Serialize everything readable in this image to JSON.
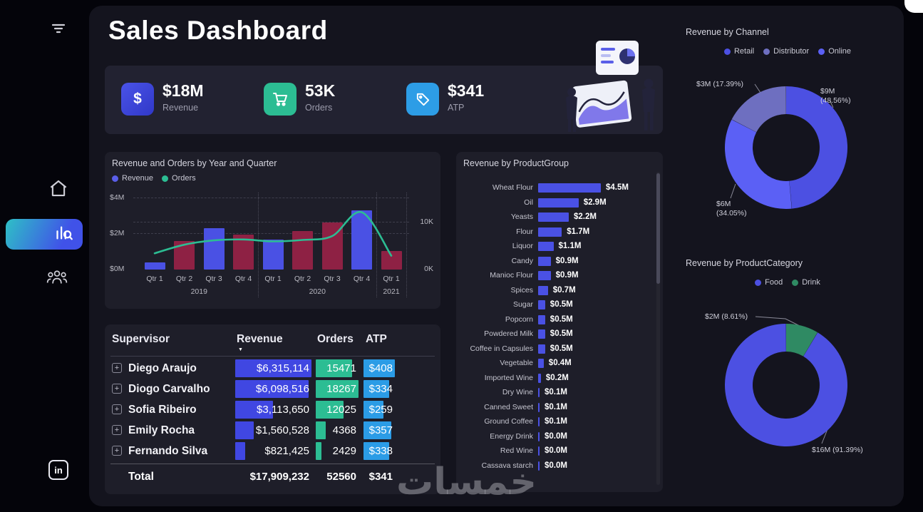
{
  "app_title": "Sales Dashboard",
  "watermark": "خمسات",
  "kpis": [
    {
      "value": "$18M",
      "label": "Revenue"
    },
    {
      "value": "53K",
      "label": "Orders"
    },
    {
      "value": "$341",
      "label": "ATP"
    }
  ],
  "combo": {
    "title": "Revenue and Orders by Year and Quarter",
    "legend": [
      {
        "label": "Revenue",
        "color": "#5a5ee8"
      },
      {
        "label": "Orders",
        "color": "#2cbd93"
      }
    ],
    "y_left": [
      "$4M",
      "$2M",
      "$0M"
    ],
    "y_right": [
      "10K",
      "0K"
    ],
    "quarters": [
      "Qtr 1",
      "Qtr 2",
      "Qtr 3",
      "Qtr 4",
      "Qtr 1",
      "Qtr 2",
      "Qtr 3",
      "Qtr 4",
      "Qtr 1"
    ],
    "years": [
      "2019",
      "2020",
      "2021"
    ],
    "revenue_m": [
      0.4,
      1.6,
      2.3,
      1.95,
      1.65,
      2.15,
      2.6,
      3.3,
      1.05
    ],
    "bar_colors": [
      "#4a51e4",
      "#8e2144",
      "#4a51e4",
      "#8e2144",
      "#4a51e4",
      "#8e2144",
      "#8e2144",
      "#4a51e4",
      "#8e2144"
    ],
    "orders_k": [
      3.4,
      5.2,
      6.1,
      6.3,
      5.9,
      6.2,
      7.0,
      12.0,
      2.9
    ],
    "line_color": "#2cbd93"
  },
  "table": {
    "headers": {
      "supervisor": "Supervisor",
      "revenue": "Revenue",
      "orders": "Orders",
      "atp": "ATP"
    },
    "bar_colors": {
      "revenue": "#4047e2",
      "orders": "#2cbd93",
      "atp": "#2b9ce6"
    },
    "rows": [
      {
        "name": "Diego Araujo",
        "revenue": "$6,315,114",
        "orders": "15471",
        "atp": "$408",
        "rev_pct": 100,
        "ord_pct": 84.7,
        "atp_pct": 100
      },
      {
        "name": "Diogo Carvalho",
        "revenue": "$6,098,516",
        "orders": "18267",
        "atp": "$334",
        "rev_pct": 96.6,
        "ord_pct": 100,
        "atp_pct": 81.9
      },
      {
        "name": "Sofia Ribeiro",
        "revenue": "$3,113,650",
        "orders": "12025",
        "atp": "$259",
        "rev_pct": 49.3,
        "ord_pct": 65.8,
        "atp_pct": 63.5
      },
      {
        "name": "Emily Rocha",
        "revenue": "$1,560,528",
        "orders": "4368",
        "atp": "$357",
        "rev_pct": 24.7,
        "ord_pct": 23.9,
        "atp_pct": 87.5
      },
      {
        "name": "Fernando Silva",
        "revenue": "$821,425",
        "orders": "2429",
        "atp": "$338",
        "rev_pct": 13.0,
        "ord_pct": 13.3,
        "atp_pct": 82.8
      }
    ],
    "total": {
      "label": "Total",
      "revenue": "$17,909,232",
      "orders": "52560",
      "atp": "$341"
    }
  },
  "product_group": {
    "title": "Revenue by ProductGroup",
    "bar_color": "#4a51e4",
    "max_value": 4.5,
    "items": [
      {
        "label": "Wheat Flour",
        "value": 4.5,
        "display": "$4.5M"
      },
      {
        "label": "Oil",
        "value": 2.9,
        "display": "$2.9M"
      },
      {
        "label": "Yeasts",
        "value": 2.2,
        "display": "$2.2M"
      },
      {
        "label": "Flour",
        "value": 1.7,
        "display": "$1.7M"
      },
      {
        "label": "Liquor",
        "value": 1.1,
        "display": "$1.1M"
      },
      {
        "label": "Candy",
        "value": 0.9,
        "display": "$0.9M"
      },
      {
        "label": "Manioc Flour",
        "value": 0.9,
        "display": "$0.9M"
      },
      {
        "label": "Spices",
        "value": 0.7,
        "display": "$0.7M"
      },
      {
        "label": "Sugar",
        "value": 0.5,
        "display": "$0.5M"
      },
      {
        "label": "Popcorn",
        "value": 0.5,
        "display": "$0.5M"
      },
      {
        "label": "Powdered Milk",
        "value": 0.5,
        "display": "$0.5M"
      },
      {
        "label": "Coffee in Capsules",
        "value": 0.5,
        "display": "$0.5M"
      },
      {
        "label": "Vegetable",
        "value": 0.4,
        "display": "$0.4M"
      },
      {
        "label": "Imported Wine",
        "value": 0.2,
        "display": "$0.2M"
      },
      {
        "label": "Dry Wine",
        "value": 0.1,
        "display": "$0.1M"
      },
      {
        "label": "Canned Sweet",
        "value": 0.1,
        "display": "$0.1M"
      },
      {
        "label": "Ground Coffee",
        "value": 0.1,
        "display": "$0.1M"
      },
      {
        "label": "Energy Drink",
        "value": 0.0,
        "display": "$0.0M"
      },
      {
        "label": "Red Wine",
        "value": 0.0,
        "display": "$0.0M"
      },
      {
        "label": "Cassava starch",
        "value": 0.0,
        "display": "$0.0M"
      }
    ]
  },
  "channel_donut": {
    "title": "Revenue by Channel",
    "legend": [
      {
        "label": "Retail",
        "color": "#4c50e2"
      },
      {
        "label": "Distributor",
        "color": "#6e6fc0"
      },
      {
        "label": "Online",
        "color": "#5b60f5"
      }
    ],
    "slices": [
      {
        "label": "Retail",
        "callout": "$9M (48.56%)",
        "pct": 48.56,
        "color": "#4c50e2"
      },
      {
        "label": "Online",
        "callout": "$6M (34.05%)",
        "pct": 34.05,
        "color": "#5b60f5"
      },
      {
        "label": "Distributor",
        "callout": "$3M (17.39%)",
        "pct": 17.39,
        "color": "#6e6fc0"
      }
    ]
  },
  "category_donut": {
    "title": "Revenue by ProductCategory",
    "legend": [
      {
        "label": "Food",
        "color": "#4c50e2"
      },
      {
        "label": "Drink",
        "color": "#2f8a63"
      }
    ],
    "slices": [
      {
        "label": "Drink",
        "callout": "$2M (8.61%)",
        "pct": 8.61,
        "color": "#2f8a63"
      },
      {
        "label": "Food",
        "callout": "$16M (91.39%)",
        "pct": 91.39,
        "color": "#4c50e2"
      }
    ]
  },
  "chart_data": [
    {
      "type": "bar",
      "title": "Revenue and Orders by Year and Quarter",
      "categories": [
        "Qtr 1 2019",
        "Qtr 2 2019",
        "Qtr 3 2019",
        "Qtr 4 2019",
        "Qtr 1 2020",
        "Qtr 2 2020",
        "Qtr 3 2020",
        "Qtr 4 2020",
        "Qtr 1 2021"
      ],
      "series": [
        {
          "name": "Revenue ($M)",
          "values": [
            0.4,
            1.6,
            2.3,
            1.95,
            1.65,
            2.15,
            2.6,
            3.3,
            1.05
          ]
        },
        {
          "name": "Orders (K)",
          "values": [
            3.4,
            5.2,
            6.1,
            6.3,
            5.9,
            6.2,
            7.0,
            12.0,
            2.9
          ]
        }
      ],
      "ylabel_left": "$0M–$4M",
      "ylabel_right": "0K–10K",
      "legend_position": "top"
    },
    {
      "type": "bar",
      "title": "Revenue by ProductGroup",
      "unit": "$M",
      "categories": [
        "Wheat Flour",
        "Oil",
        "Yeasts",
        "Flour",
        "Liquor",
        "Candy",
        "Manioc Flour",
        "Spices",
        "Sugar",
        "Popcorn",
        "Powdered Milk",
        "Coffee in Capsules",
        "Vegetable",
        "Imported Wine",
        "Dry Wine",
        "Canned Sweet",
        "Ground Coffee",
        "Energy Drink",
        "Red Wine",
        "Cassava starch"
      ],
      "values": [
        4.5,
        2.9,
        2.2,
        1.7,
        1.1,
        0.9,
        0.9,
        0.7,
        0.5,
        0.5,
        0.5,
        0.5,
        0.4,
        0.2,
        0.1,
        0.1,
        0.1,
        0.0,
        0.0,
        0.0
      ]
    },
    {
      "type": "pie",
      "title": "Revenue by Channel",
      "labels": [
        "Retail",
        "Online",
        "Distributor"
      ],
      "values_m": [
        9,
        6,
        3
      ],
      "pcts": [
        48.56,
        34.05,
        17.39
      ]
    },
    {
      "type": "pie",
      "title": "Revenue by ProductCategory",
      "labels": [
        "Food",
        "Drink"
      ],
      "values_m": [
        16,
        2
      ],
      "pcts": [
        91.39,
        8.61
      ]
    },
    {
      "type": "table",
      "title": "Supervisor table",
      "columns": [
        "Supervisor",
        "Revenue",
        "Orders",
        "ATP"
      ],
      "rows": [
        [
          "Diego Araujo",
          "$6,315,114",
          "15471",
          "$408"
        ],
        [
          "Diogo Carvalho",
          "$6,098,516",
          "18267",
          "$334"
        ],
        [
          "Sofia Ribeiro",
          "$3,113,650",
          "12025",
          "$259"
        ],
        [
          "Emily Rocha",
          "$1,560,528",
          "4368",
          "$357"
        ],
        [
          "Fernando Silva",
          "$821,425",
          "2429",
          "$338"
        ],
        [
          "Total",
          "$17,909,232",
          "52560",
          "$341"
        ]
      ]
    }
  ]
}
